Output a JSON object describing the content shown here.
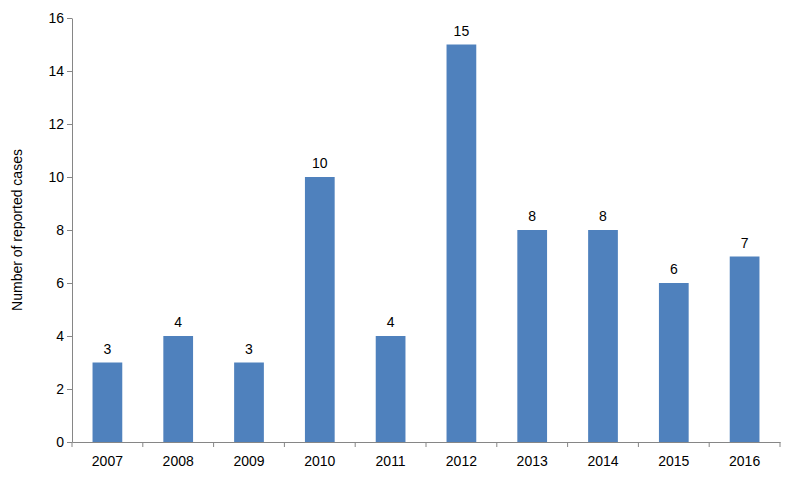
{
  "chart_data": {
    "type": "bar",
    "y_label": "Number of reported cases",
    "categories": [
      "2007",
      "2008",
      "2009",
      "2010",
      "2011",
      "2012",
      "2013",
      "2014",
      "2015",
      "2016"
    ],
    "values": [
      3,
      4,
      3,
      10,
      4,
      15,
      8,
      8,
      6,
      7
    ],
    "color": "#4f81bd",
    "ylim": [
      0,
      16
    ],
    "yticks": [
      0,
      2,
      4,
      6,
      8,
      10,
      12,
      14,
      16
    ],
    "grid": false,
    "data_labels": true
  }
}
